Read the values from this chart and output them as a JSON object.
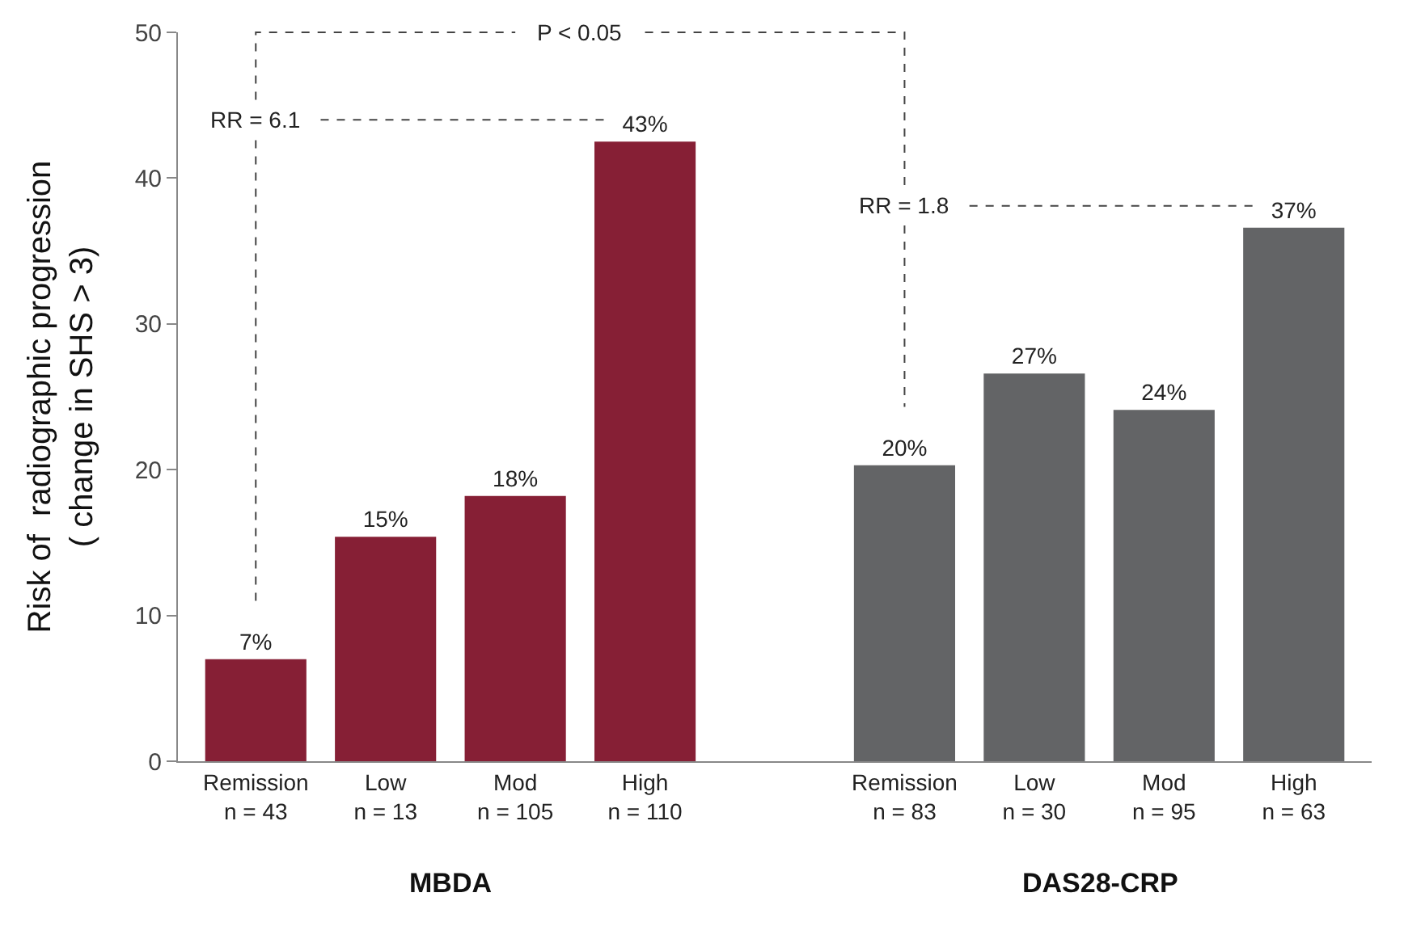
{
  "chart_data": {
    "type": "bar",
    "ylabel": "Risk of  radiographic progression\n( change in SHS > 3)",
    "categories": [
      "Remission\nn = 43",
      "Low\nn = 13",
      "Mod\nn = 105",
      "High\nn = 110",
      null,
      "Remission\nn = 83",
      "Low\nn = 30",
      "Mod\nn = 95",
      "High\nn = 63"
    ],
    "values": [
      7.0,
      15.4,
      18.2,
      42.5,
      null,
      20.3,
      26.6,
      24.1,
      36.6
    ],
    "value_labels": [
      "7%",
      "15%",
      "18%",
      "43%",
      null,
      "20%",
      "27%",
      "24%",
      "37%"
    ],
    "colors": [
      "#861f35",
      "#861f35",
      "#861f35",
      "#861f35",
      "#861f35",
      "#636466",
      "#636466",
      "#636466",
      "#636466"
    ],
    "ylim": [
      0,
      50
    ],
    "yticks": [
      0,
      10,
      20,
      30,
      40,
      50
    ],
    "annotations": [
      "P < 0.05",
      "RR = 6.1",
      "RR = 1.8",
      "MBDA",
      "DAS28-CRP"
    ]
  }
}
